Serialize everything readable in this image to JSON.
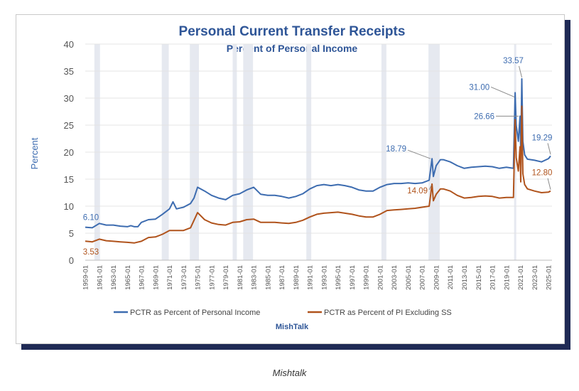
{
  "colors": {
    "series_blue": "#3d6cb0",
    "series_orange": "#b0531c",
    "title": "#2e5597",
    "recession_band": "#e6e9f0",
    "card_shadow": "#1f2a55"
  },
  "caption": "Mishtalk",
  "chart_data": {
    "type": "line",
    "title": "Personal Current Transfer Receipts",
    "subtitle": "Percent of Personal Income",
    "ylabel": "Percent",
    "xlabel": "",
    "source": "MishTalk",
    "ylim": [
      0,
      40
    ],
    "yticks": [
      0,
      5,
      10,
      15,
      20,
      25,
      30,
      35,
      40
    ],
    "xlim": [
      1959.0,
      2025.5
    ],
    "xtick_labels": [
      "1959-01",
      "1961-01",
      "1963-01",
      "1965-01",
      "1967-01",
      "1969-01",
      "1971-01",
      "1973-01",
      "1975-01",
      "1977-01",
      "1979-01",
      "1981-01",
      "1983-01",
      "1985-01",
      "1987-01",
      "1989-01",
      "1991-01",
      "1993-01",
      "1995-01",
      "1997-01",
      "1999-01",
      "2001-01",
      "2003-01",
      "2005-01",
      "2007-01",
      "2009-01",
      "2011-01",
      "2013-01",
      "2015-01",
      "2017-01",
      "2019-01",
      "2021-01",
      "2023-01",
      "2025-01"
    ],
    "grid": "horizontal",
    "legend_position": "bottom",
    "recession_bands": [
      [
        1960.3,
        1961.1
      ],
      [
        1969.9,
        1970.9
      ],
      [
        1973.9,
        1975.2
      ],
      [
        1980.0,
        1980.6
      ],
      [
        1981.5,
        1982.9
      ],
      [
        1990.5,
        1991.2
      ],
      [
        2001.2,
        2001.9
      ],
      [
        2007.9,
        2009.5
      ],
      [
        2020.1,
        2020.4
      ]
    ],
    "series": [
      {
        "name": "PCTR as Percent of Personal Income",
        "color": "#3d6cb0",
        "points": [
          [
            1959.0,
            6.1
          ],
          [
            1960.0,
            6.0
          ],
          [
            1961.0,
            6.8
          ],
          [
            1962.0,
            6.5
          ],
          [
            1963.0,
            6.5
          ],
          [
            1964.0,
            6.3
          ],
          [
            1965.0,
            6.2
          ],
          [
            1965.5,
            6.4
          ],
          [
            1966.0,
            6.2
          ],
          [
            1966.5,
            6.2
          ],
          [
            1967.0,
            7.0
          ],
          [
            1968.0,
            7.5
          ],
          [
            1969.0,
            7.6
          ],
          [
            1970.0,
            8.5
          ],
          [
            1971.0,
            9.5
          ],
          [
            1971.5,
            10.8
          ],
          [
            1972.0,
            9.5
          ],
          [
            1973.0,
            9.8
          ],
          [
            1974.0,
            10.5
          ],
          [
            1974.5,
            11.5
          ],
          [
            1975.0,
            13.5
          ],
          [
            1976.0,
            12.8
          ],
          [
            1977.0,
            12.0
          ],
          [
            1978.0,
            11.5
          ],
          [
            1979.0,
            11.2
          ],
          [
            1980.0,
            12.0
          ],
          [
            1981.0,
            12.3
          ],
          [
            1982.0,
            13.0
          ],
          [
            1983.0,
            13.5
          ],
          [
            1984.0,
            12.2
          ],
          [
            1985.0,
            12.0
          ],
          [
            1986.0,
            12.0
          ],
          [
            1987.0,
            11.8
          ],
          [
            1988.0,
            11.5
          ],
          [
            1989.0,
            11.8
          ],
          [
            1990.0,
            12.3
          ],
          [
            1991.0,
            13.2
          ],
          [
            1992.0,
            13.8
          ],
          [
            1993.0,
            14.0
          ],
          [
            1994.0,
            13.8
          ],
          [
            1995.0,
            14.0
          ],
          [
            1996.0,
            13.8
          ],
          [
            1997.0,
            13.5
          ],
          [
            1998.0,
            13.0
          ],
          [
            1999.0,
            12.8
          ],
          [
            2000.0,
            12.8
          ],
          [
            2001.0,
            13.5
          ],
          [
            2002.0,
            14.0
          ],
          [
            2003.0,
            14.2
          ],
          [
            2004.0,
            14.2
          ],
          [
            2005.0,
            14.3
          ],
          [
            2006.0,
            14.2
          ],
          [
            2007.0,
            14.3
          ],
          [
            2008.0,
            14.8
          ],
          [
            2008.4,
            18.79
          ],
          [
            2008.6,
            15.5
          ],
          [
            2009.0,
            17.5
          ],
          [
            2009.6,
            18.6
          ],
          [
            2010.0,
            18.6
          ],
          [
            2011.0,
            18.2
          ],
          [
            2012.0,
            17.5
          ],
          [
            2013.0,
            17.0
          ],
          [
            2014.0,
            17.2
          ],
          [
            2015.0,
            17.3
          ],
          [
            2016.0,
            17.4
          ],
          [
            2017.0,
            17.3
          ],
          [
            2018.0,
            17.0
          ],
          [
            2019.0,
            17.2
          ],
          [
            2020.0,
            17.0
          ],
          [
            2020.25,
            31.0
          ],
          [
            2020.4,
            25.0
          ],
          [
            2020.7,
            22.0
          ],
          [
            2020.95,
            26.66
          ],
          [
            2021.05,
            20.0
          ],
          [
            2021.2,
            33.57
          ],
          [
            2021.35,
            22.0
          ],
          [
            2021.6,
            19.5
          ],
          [
            2022.0,
            18.7
          ],
          [
            2023.0,
            18.5
          ],
          [
            2024.0,
            18.2
          ],
          [
            2025.0,
            18.8
          ],
          [
            2025.3,
            19.29
          ]
        ]
      },
      {
        "name": "PCTR as Percent of PI Excluding SS",
        "color": "#b0531c",
        "points": [
          [
            1959.0,
            3.53
          ],
          [
            1960.0,
            3.4
          ],
          [
            1961.0,
            3.9
          ],
          [
            1962.0,
            3.6
          ],
          [
            1963.0,
            3.5
          ],
          [
            1964.0,
            3.4
          ],
          [
            1965.0,
            3.3
          ],
          [
            1966.0,
            3.2
          ],
          [
            1967.0,
            3.5
          ],
          [
            1968.0,
            4.2
          ],
          [
            1969.0,
            4.3
          ],
          [
            1970.0,
            4.8
          ],
          [
            1971.0,
            5.5
          ],
          [
            1972.0,
            5.5
          ],
          [
            1973.0,
            5.5
          ],
          [
            1974.0,
            6.0
          ],
          [
            1975.0,
            8.8
          ],
          [
            1976.0,
            7.5
          ],
          [
            1977.0,
            6.9
          ],
          [
            1978.0,
            6.6
          ],
          [
            1979.0,
            6.5
          ],
          [
            1980.0,
            7.0
          ],
          [
            1981.0,
            7.1
          ],
          [
            1982.0,
            7.5
          ],
          [
            1983.0,
            7.6
          ],
          [
            1984.0,
            7.0
          ],
          [
            1985.0,
            7.0
          ],
          [
            1986.0,
            7.0
          ],
          [
            1987.0,
            6.9
          ],
          [
            1988.0,
            6.8
          ],
          [
            1989.0,
            7.0
          ],
          [
            1990.0,
            7.4
          ],
          [
            1991.0,
            8.0
          ],
          [
            1992.0,
            8.5
          ],
          [
            1993.0,
            8.7
          ],
          [
            1994.0,
            8.8
          ],
          [
            1995.0,
            8.9
          ],
          [
            1996.0,
            8.7
          ],
          [
            1997.0,
            8.5
          ],
          [
            1998.0,
            8.2
          ],
          [
            1999.0,
            8.0
          ],
          [
            2000.0,
            8.0
          ],
          [
            2001.0,
            8.5
          ],
          [
            2002.0,
            9.2
          ],
          [
            2003.0,
            9.3
          ],
          [
            2004.0,
            9.4
          ],
          [
            2005.0,
            9.5
          ],
          [
            2006.0,
            9.6
          ],
          [
            2007.0,
            9.8
          ],
          [
            2008.0,
            10.0
          ],
          [
            2008.4,
            14.09
          ],
          [
            2008.6,
            11.0
          ],
          [
            2009.0,
            12.2
          ],
          [
            2009.6,
            13.2
          ],
          [
            2010.0,
            13.2
          ],
          [
            2011.0,
            12.8
          ],
          [
            2012.0,
            12.0
          ],
          [
            2013.0,
            11.5
          ],
          [
            2014.0,
            11.6
          ],
          [
            2015.0,
            11.8
          ],
          [
            2016.0,
            11.9
          ],
          [
            2017.0,
            11.8
          ],
          [
            2018.0,
            11.5
          ],
          [
            2019.0,
            11.6
          ],
          [
            2020.0,
            11.6
          ],
          [
            2020.25,
            26.0
          ],
          [
            2020.4,
            19.0
          ],
          [
            2020.7,
            16.5
          ],
          [
            2020.95,
            21.0
          ],
          [
            2021.05,
            14.5
          ],
          [
            2021.2,
            28.5
          ],
          [
            2021.35,
            16.0
          ],
          [
            2021.6,
            14.0
          ],
          [
            2022.0,
            13.2
          ],
          [
            2023.0,
            12.8
          ],
          [
            2024.0,
            12.5
          ],
          [
            2025.0,
            12.6
          ],
          [
            2025.3,
            12.8
          ]
        ]
      }
    ],
    "annotations": [
      {
        "text": "6.10",
        "series": 0,
        "x": 1959.0,
        "y": 6.1,
        "place": "above"
      },
      {
        "text": "3.53",
        "series": 1,
        "x": 1959.0,
        "y": 3.53,
        "place": "below"
      },
      {
        "text": "18.79",
        "series": 0,
        "x": 2008.4,
        "y": 18.79,
        "place": "leader-left"
      },
      {
        "text": "14.09",
        "series": 1,
        "x": 2008.4,
        "y": 14.09,
        "place": "leader-left-low"
      },
      {
        "text": "31.00",
        "series": 0,
        "x": 2020.25,
        "y": 31.0,
        "place": "leader-left"
      },
      {
        "text": "26.66",
        "series": 0,
        "x": 2020.95,
        "y": 26.66,
        "place": "leader-left"
      },
      {
        "text": "33.57",
        "series": 0,
        "x": 2021.2,
        "y": 33.57,
        "place": "leader-up"
      },
      {
        "text": "19.29",
        "series": 0,
        "x": 2025.3,
        "y": 19.29,
        "place": "leader-up"
      },
      {
        "text": "12.80",
        "series": 1,
        "x": 2025.3,
        "y": 12.8,
        "place": "leader-up"
      }
    ]
  }
}
